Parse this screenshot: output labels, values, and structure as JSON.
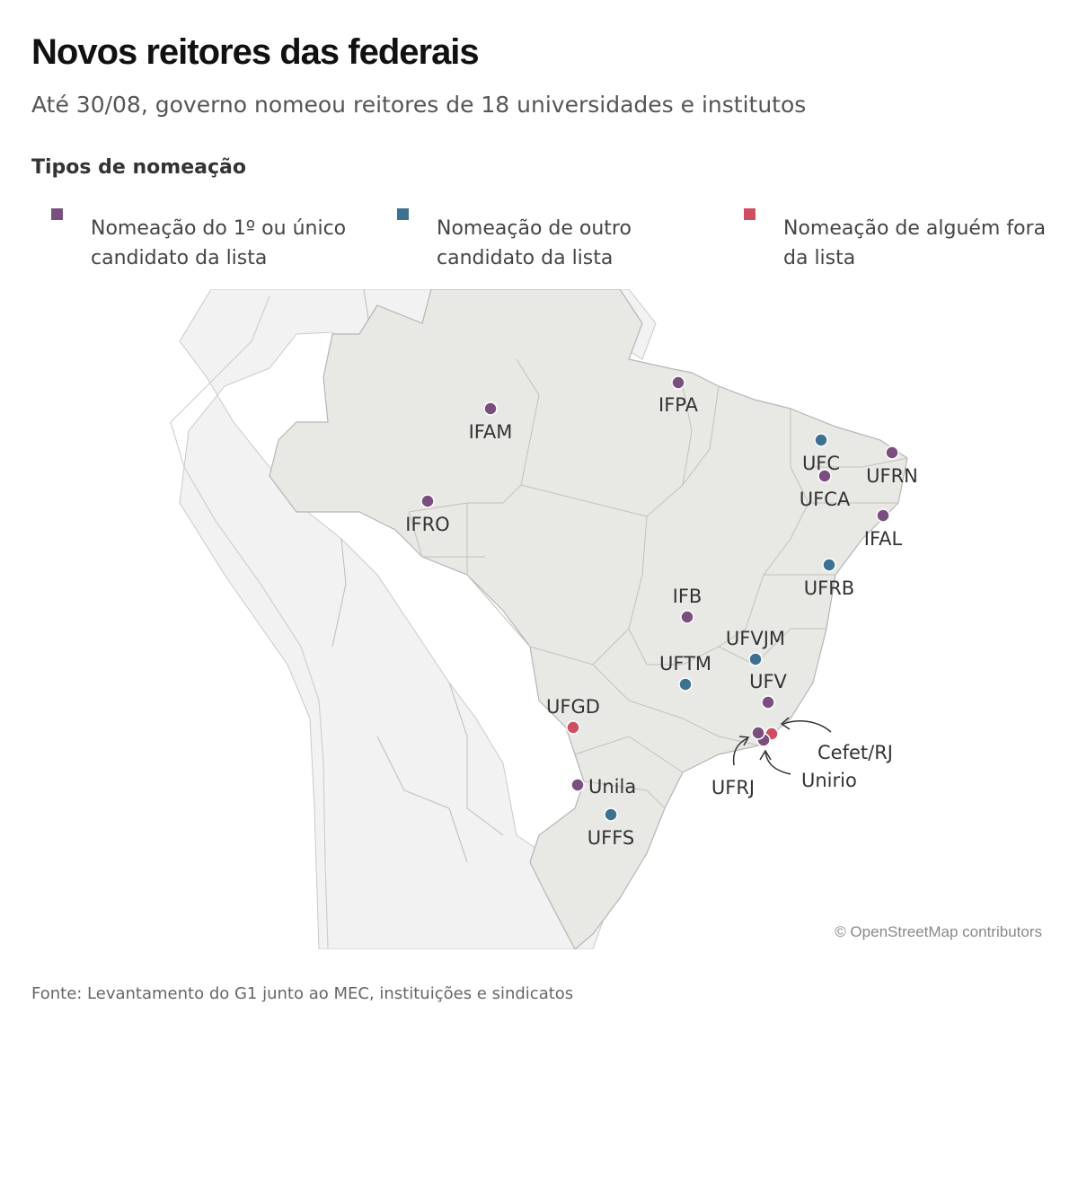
{
  "title": "Novos reitores das federais",
  "subtitle": "Até 30/08, governo nomeou reitores de 18 universidades e institutos",
  "legend": {
    "title": "Tipos de nomeação",
    "items": [
      {
        "label": "Nomeação do 1º ou único candidato da lista",
        "color": "#7a4f80"
      },
      {
        "label": "Nomeação de outro candidato da lista",
        "color": "#3d7191"
      },
      {
        "label": "Nomeação de alguém fora da lista",
        "color": "#cf4d60"
      }
    ]
  },
  "map": {
    "credit": "© OpenStreetMap contributors",
    "markers": [
      {
        "label": "IFPA",
        "type": 0
      },
      {
        "label": "IFAM",
        "type": 0
      },
      {
        "label": "UFC",
        "type": 1
      },
      {
        "label": "UFRN",
        "type": 0
      },
      {
        "label": "UFCA",
        "type": 0
      },
      {
        "label": "IFRO",
        "type": 0
      },
      {
        "label": "IFAL",
        "type": 0
      },
      {
        "label": "UFRB",
        "type": 1
      },
      {
        "label": "IFB",
        "type": 0
      },
      {
        "label": "UFVJM",
        "type": 1
      },
      {
        "label": "UFTM",
        "type": 1
      },
      {
        "label": "UFV",
        "type": 0
      },
      {
        "label": "UFGD",
        "type": 2
      },
      {
        "label": "Cefet/RJ",
        "type": 2
      },
      {
        "label": "Unirio",
        "type": 0
      },
      {
        "label": "UFRJ",
        "type": 0
      },
      {
        "label": "Unila",
        "type": 0
      },
      {
        "label": "UFFS",
        "type": 1
      }
    ]
  },
  "source": "Fonte: Levantamento do G1 junto ao MEC, instituições e sindicatos"
}
